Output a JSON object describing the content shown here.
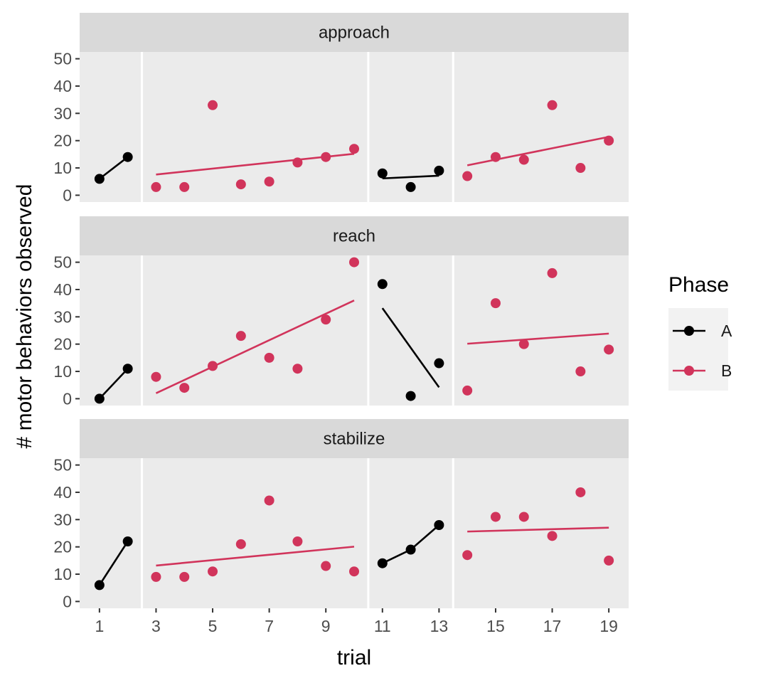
{
  "chart_data": {
    "type": "scatter",
    "title": "",
    "xlabel": "trial",
    "ylabel": "# motor behaviors observed",
    "xlim": [
      0.3,
      19.7
    ],
    "ylim": [
      -2.5,
      52.5
    ],
    "x_ticks": [
      "1",
      "3",
      "5",
      "7",
      "9",
      "11",
      "13",
      "15",
      "17",
      "19"
    ],
    "x_tick_values": [
      1,
      3,
      5,
      7,
      9,
      11,
      13,
      15,
      17,
      19
    ],
    "y_ticks": [
      "0",
      "10",
      "20",
      "30",
      "40",
      "50"
    ],
    "y_tick_values": [
      0,
      10,
      20,
      30,
      40,
      50
    ],
    "phase_change_lines": [
      2.5,
      10.5,
      13.5
    ],
    "grid": false,
    "legend_title": "Phase",
    "legend_position": "right",
    "legend_items": [
      {
        "label": "A",
        "color": "#000000"
      },
      {
        "label": "B",
        "color": "#d1345b"
      }
    ],
    "panels": [
      {
        "name": "approach",
        "series": [
          {
            "phase": "A",
            "style": "connected",
            "points": [
              {
                "x": 1,
                "y": 6
              },
              {
                "x": 2,
                "y": 14
              }
            ]
          },
          {
            "phase": "B",
            "style": "trend",
            "points": [
              {
                "x": 3,
                "y": 3
              },
              {
                "x": 4,
                "y": 3
              },
              {
                "x": 5,
                "y": 33
              },
              {
                "x": 6,
                "y": 4
              },
              {
                "x": 7,
                "y": 5
              },
              {
                "x": 8,
                "y": 12
              },
              {
                "x": 9,
                "y": 14
              },
              {
                "x": 10,
                "y": 17
              }
            ]
          },
          {
            "phase": "A",
            "style": "trend",
            "points": [
              {
                "x": 11,
                "y": 8
              },
              {
                "x": 12,
                "y": 3
              },
              {
                "x": 13,
                "y": 9
              }
            ]
          },
          {
            "phase": "B",
            "style": "trend",
            "points": [
              {
                "x": 14,
                "y": 7
              },
              {
                "x": 15,
                "y": 14
              },
              {
                "x": 16,
                "y": 13
              },
              {
                "x": 17,
                "y": 33
              },
              {
                "x": 18,
                "y": 10
              },
              {
                "x": 19,
                "y": 20
              }
            ]
          }
        ]
      },
      {
        "name": "reach",
        "series": [
          {
            "phase": "A",
            "style": "connected",
            "points": [
              {
                "x": 1,
                "y": 0
              },
              {
                "x": 2,
                "y": 11
              }
            ]
          },
          {
            "phase": "B",
            "style": "trend",
            "points": [
              {
                "x": 3,
                "y": 8
              },
              {
                "x": 4,
                "y": 4
              },
              {
                "x": 5,
                "y": 12
              },
              {
                "x": 6,
                "y": 23
              },
              {
                "x": 7,
                "y": 15
              },
              {
                "x": 8,
                "y": 11
              },
              {
                "x": 9,
                "y": 29
              },
              {
                "x": 10,
                "y": 50
              }
            ]
          },
          {
            "phase": "A",
            "style": "trend",
            "points": [
              {
                "x": 11,
                "y": 42
              },
              {
                "x": 12,
                "y": 1
              },
              {
                "x": 13,
                "y": 13
              }
            ]
          },
          {
            "phase": "B",
            "style": "trend",
            "points": [
              {
                "x": 14,
                "y": 3
              },
              {
                "x": 15,
                "y": 35
              },
              {
                "x": 16,
                "y": 20
              },
              {
                "x": 17,
                "y": 46
              },
              {
                "x": 18,
                "y": 10
              },
              {
                "x": 19,
                "y": 18
              }
            ]
          }
        ]
      },
      {
        "name": "stabilize",
        "series": [
          {
            "phase": "A",
            "style": "connected",
            "points": [
              {
                "x": 1,
                "y": 6
              },
              {
                "x": 2,
                "y": 22
              }
            ]
          },
          {
            "phase": "B",
            "style": "trend",
            "points": [
              {
                "x": 3,
                "y": 9
              },
              {
                "x": 4,
                "y": 9
              },
              {
                "x": 5,
                "y": 11
              },
              {
                "x": 6,
                "y": 21
              },
              {
                "x": 7,
                "y": 37
              },
              {
                "x": 8,
                "y": 22
              },
              {
                "x": 9,
                "y": 13
              },
              {
                "x": 10,
                "y": 11
              }
            ]
          },
          {
            "phase": "A",
            "style": "connected",
            "points": [
              {
                "x": 11,
                "y": 14
              },
              {
                "x": 12,
                "y": 19
              },
              {
                "x": 13,
                "y": 28
              }
            ]
          },
          {
            "phase": "B",
            "style": "trend",
            "points": [
              {
                "x": 14,
                "y": 17
              },
              {
                "x": 15,
                "y": 31
              },
              {
                "x": 16,
                "y": 31
              },
              {
                "x": 17,
                "y": 24
              },
              {
                "x": 18,
                "y": 40
              },
              {
                "x": 19,
                "y": 15
              }
            ]
          }
        ]
      }
    ]
  }
}
